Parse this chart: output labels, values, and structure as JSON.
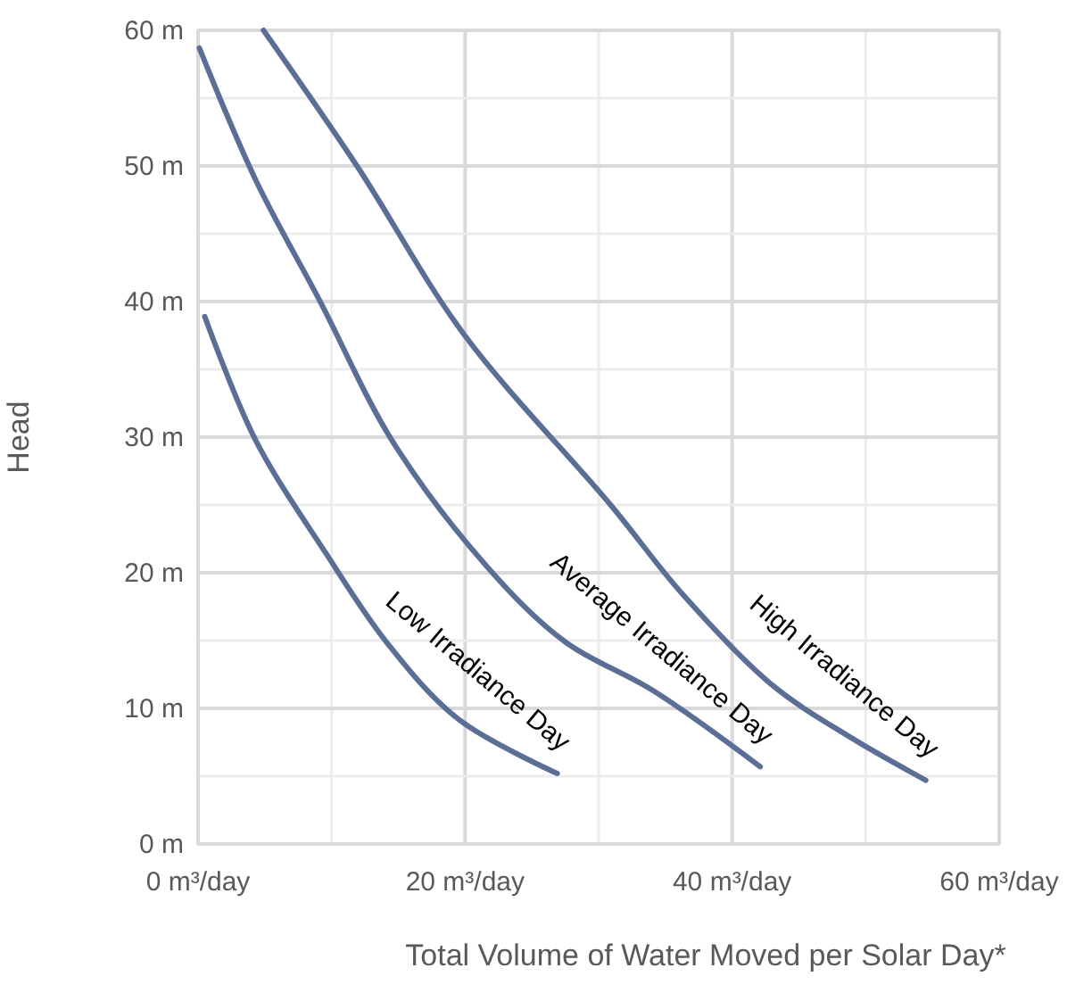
{
  "chart_data": {
    "type": "line",
    "xlabel": "Total Volume of Water Moved per Solar Day*",
    "ylabel": "Head",
    "xlim": [
      0,
      60
    ],
    "ylim": [
      0,
      60
    ],
    "xticks": [
      {
        "value": 0,
        "label": "0 m³/day"
      },
      {
        "value": 10,
        "label": null
      },
      {
        "value": 20,
        "label": "20 m³/day"
      },
      {
        "value": 30,
        "label": null
      },
      {
        "value": 40,
        "label": "40 m³/day"
      },
      {
        "value": 50,
        "label": null
      },
      {
        "value": 60,
        "label": "60 m³/day"
      }
    ],
    "yticks": [
      {
        "value": 0,
        "label": "0 m"
      },
      {
        "value": 5,
        "label": null
      },
      {
        "value": 10,
        "label": "10 m"
      },
      {
        "value": 15,
        "label": null
      },
      {
        "value": 20,
        "label": "20 m"
      },
      {
        "value": 25,
        "label": null
      },
      {
        "value": 30,
        "label": "30 m"
      },
      {
        "value": 35,
        "label": null
      },
      {
        "value": 40,
        "label": "40 m"
      },
      {
        "value": 45,
        "label": null
      },
      {
        "value": 50,
        "label": "50 m"
      },
      {
        "value": 55,
        "label": null
      },
      {
        "value": 60,
        "label": "60 m"
      }
    ],
    "grid": true,
    "marker": "none",
    "line_style": "solid",
    "series": [
      {
        "name": "Low Irradiance Day",
        "color": "#5b6f96",
        "x": [
          0.5,
          4.3,
          9.6,
          14.1,
          19.5,
          26.9
        ],
        "values": [
          38.9,
          29.8,
          21.4,
          14.9,
          9.2,
          5.2
        ]
      },
      {
        "name": "Average Irradiance Day",
        "color": "#5b6f96",
        "x": [
          0.1,
          4.3,
          9.2,
          14.5,
          21.6,
          27.5,
          34.1,
          42.1
        ],
        "values": [
          58.7,
          49,
          39.9,
          29.8,
          20.5,
          14.9,
          11.3,
          5.7
        ]
      },
      {
        "name": "High Irradiance Day",
        "color": "#5b6f96",
        "x": [
          4.9,
          11.9,
          19.9,
          30.9,
          36.3,
          42.9,
          48.8,
          54.5
        ],
        "values": [
          60,
          50,
          37.6,
          25,
          18.4,
          11.8,
          7.9,
          4.7
        ]
      }
    ]
  }
}
